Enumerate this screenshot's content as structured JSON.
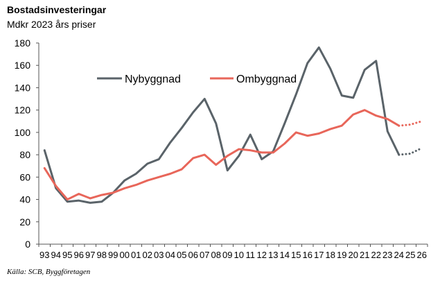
{
  "chart_data": {
    "type": "line",
    "title": "Bostadsinvesteringar",
    "subtitle": "Mdkr 2023 års priser",
    "source": "Källa: SCB, Byggföretagen",
    "xlabel": "",
    "ylabel": "",
    "ylim": [
      0,
      180
    ],
    "yticks": [
      0,
      20,
      40,
      60,
      80,
      100,
      120,
      140,
      160,
      180
    ],
    "categories": [
      "93",
      "94",
      "95",
      "96",
      "97",
      "98",
      "99",
      "00",
      "01",
      "02",
      "03",
      "04",
      "05",
      "06",
      "07",
      "08",
      "09",
      "10",
      "11",
      "12",
      "13",
      "14",
      "15",
      "16",
      "17",
      "18",
      "19",
      "20",
      "21",
      "22",
      "23",
      "24",
      "25",
      "26"
    ],
    "legend_position": "upper-left inside plot",
    "grid": false,
    "series": [
      {
        "name": "Nybyggnad",
        "color": "#5a6369",
        "values": [
          84,
          50,
          38,
          39,
          37,
          38,
          46,
          57,
          63,
          72,
          76,
          91,
          104,
          118,
          130,
          108,
          66,
          79,
          98,
          76,
          83,
          108,
          134,
          162,
          176,
          157,
          133,
          131,
          156,
          164,
          101,
          80,
          81,
          86
        ],
        "forecast_from_index": 31
      },
      {
        "name": "Ombyggnad",
        "color": "#e8665a",
        "values": [
          68,
          52,
          40,
          45,
          41,
          44,
          46,
          50,
          53,
          57,
          60,
          63,
          67,
          77,
          80,
          71,
          79,
          85,
          84,
          82,
          82,
          90,
          100,
          97,
          99,
          103,
          106,
          116,
          120,
          115,
          112,
          106,
          107,
          110
        ],
        "forecast_from_index": 31
      }
    ]
  }
}
